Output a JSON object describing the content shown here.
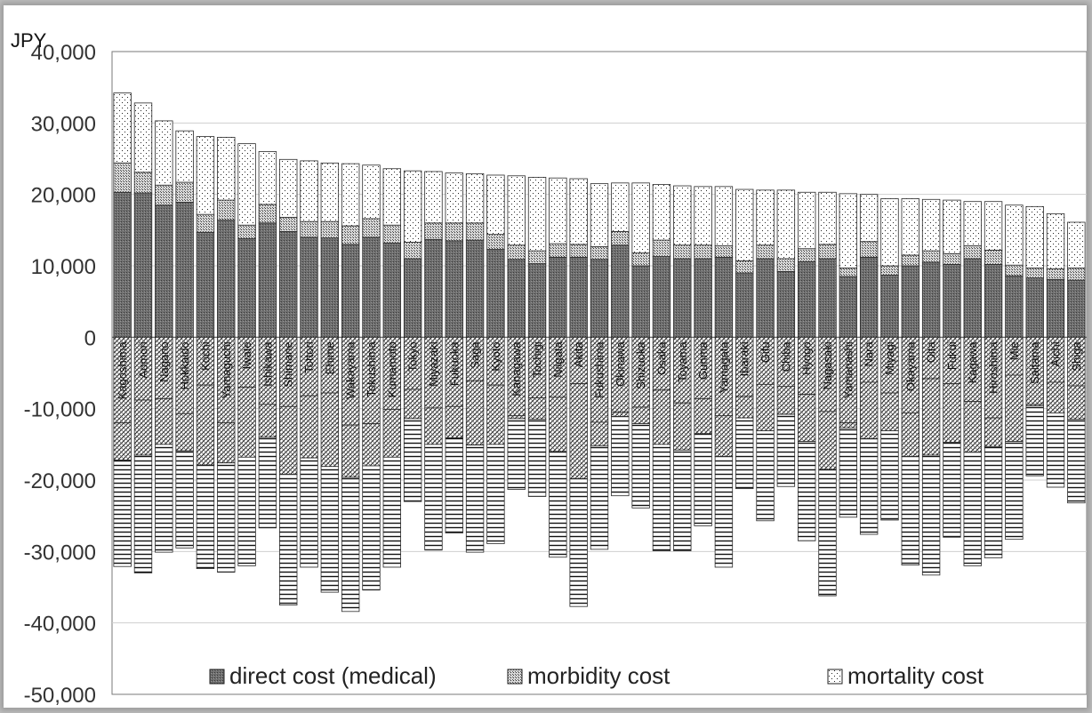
{
  "chart_data": {
    "type": "bar",
    "stacked": true,
    "ylabel": "JPY",
    "ylim": [
      -50000,
      40000
    ],
    "ytick_labels": [
      "-50,000",
      "-40,000",
      "-30,000",
      "-20,000",
      "-10,000",
      "0",
      "10,000",
      "20,000",
      "30,000",
      "40,000"
    ],
    "grid": true,
    "legend_position": "bottom",
    "categories": [
      "Kagoshima",
      "Aomori",
      "Nagano",
      "Hokkaido",
      "Kochi",
      "Yamaguchi",
      "Iwate",
      "Ishikawa",
      "Shimane",
      "Tottori",
      "Ehime",
      "Wakayama",
      "Tokushima",
      "Kumamoto",
      "Tokyo",
      "Miyazaki",
      "Fukuoka",
      "Saga",
      "Kyoto",
      "Kanagawa",
      "Tochigi",
      "Niigata",
      "Akita",
      "Fukushima",
      "Okinawa",
      "Shizuoka",
      "Osaka",
      "Toyama",
      "Gunma",
      "Yamagata",
      "Ibaraki",
      "Gifu",
      "Chiba",
      "Hyogo",
      "Nagasaki",
      "Yamanashi",
      "Nara",
      "Miyagi",
      "Okayama",
      "Oita",
      "Fukui",
      "Kagawa",
      "Hiroshima",
      "Mie",
      "Saitama",
      "Aichi",
      "Shiga"
    ],
    "series": [
      {
        "name": "direct cost (medical)",
        "pattern": "dark-dots",
        "values": [
          20300,
          20200,
          18500,
          18900,
          14700,
          16400,
          13800,
          16000,
          14800,
          14000,
          13900,
          13000,
          14000,
          13200,
          11000,
          13700,
          13500,
          13600,
          12300,
          10900,
          10300,
          11200,
          11200,
          10900,
          12900,
          10000,
          11300,
          11000,
          11000,
          11200,
          9000,
          11000,
          9200,
          10600,
          11000,
          8500,
          11200,
          8700,
          10000,
          10500,
          10200,
          11000,
          10200,
          8600,
          8300,
          8100,
          8000
        ]
      },
      {
        "name": "morbidity cost",
        "pattern": "medium-dots",
        "values": [
          4100,
          2900,
          2800,
          2800,
          2500,
          2800,
          1900,
          2600,
          2000,
          2200,
          2300,
          2600,
          2600,
          2500,
          2300,
          2300,
          2500,
          2400,
          2100,
          2000,
          1800,
          1900,
          1800,
          1800,
          1900,
          1800,
          2300,
          1900,
          1900,
          1600,
          1700,
          1900,
          1800,
          1800,
          2000,
          1200,
          2200,
          1300,
          1500,
          1600,
          1500,
          1800,
          2000,
          1500,
          1400,
          1500,
          1700
        ]
      },
      {
        "name": "mortality cost",
        "pattern": "light-dots",
        "values": [
          9800,
          9700,
          9000,
          7200,
          10900,
          8800,
          11400,
          7400,
          8100,
          8500,
          8200,
          8700,
          7500,
          7900,
          10000,
          7200,
          7000,
          6900,
          8300,
          9700,
          10300,
          9200,
          9200,
          8800,
          6800,
          9800,
          7800,
          8300,
          8200,
          8300,
          10000,
          7700,
          9600,
          7900,
          7300,
          10400,
          6600,
          9400,
          7900,
          7200,
          7500,
          6200,
          6800,
          8400,
          8600,
          7700,
          6400
        ]
      },
      {
        "values": [
          -12000,
          -8800,
          -8600,
          -10700,
          -6700,
          -12000,
          -7000,
          -9400,
          -9700,
          -8200,
          -7800,
          -12300,
          -12100,
          -10100,
          -7300,
          -9900,
          -9700,
          -6100,
          -6700,
          -11000,
          -8500,
          -8400,
          -6500,
          -11900,
          -10500,
          -9800,
          -7400,
          -9200,
          -8600,
          -11000,
          -8300,
          -6600,
          -6900,
          -8000,
          -10400,
          -12000,
          -6300,
          -7800,
          -10600,
          -5800,
          -6500,
          -9000,
          -11300,
          -5300,
          -9400,
          -6300,
          -6800
        ]
      },
      {
        "values": [
          -5200,
          -7700,
          -6400,
          -5200,
          -11200,
          -5600,
          -9800,
          -4600,
          -9500,
          -8700,
          -10300,
          -7300,
          -5900,
          -6700,
          -4100,
          -5100,
          -4400,
          -9000,
          -8300,
          -400,
          -3000,
          -7600,
          -13300,
          -3300,
          -600,
          -2300,
          -7600,
          -6600,
          -4900,
          -5700,
          -3000,
          -6500,
          -3900,
          -6600,
          -8100,
          -700,
          -7900,
          -5300,
          -6100,
          -10700,
          -8200,
          -7100,
          -4000,
          -9300,
          -200,
          -4300,
          -4700
        ]
      },
      {
        "values": [
          -14900,
          -16500,
          -15100,
          -13600,
          -14500,
          -15300,
          -15200,
          -12700,
          -18300,
          -15300,
          -17600,
          -18800,
          -17400,
          -15400,
          -11600,
          -14800,
          -13300,
          -15000,
          -13900,
          -9900,
          -10800,
          -14800,
          -17900,
          -14500,
          -11100,
          -11800,
          -14900,
          -14100,
          -12900,
          -15500,
          -9900,
          -12600,
          -10100,
          -13900,
          -17700,
          -12500,
          -13400,
          -12500,
          -15200,
          -16800,
          -13300,
          -15900,
          -15600,
          -13700,
          -9800,
          -10400,
          -11700
        ]
      }
    ]
  }
}
